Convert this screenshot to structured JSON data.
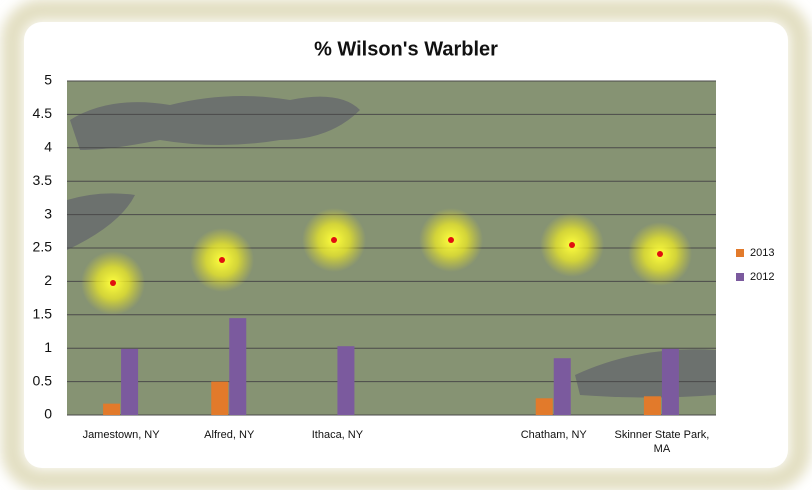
{
  "chart_data": {
    "type": "bar",
    "title": "% Wilson's Warbler",
    "categories": [
      "Jamestown, NY",
      "Alfred, NY",
      "Ithaca, NY",
      null,
      "Chatham, NY",
      "Skinner State Park, MA"
    ],
    "series": [
      {
        "name": "2013",
        "color": "#e27a2b",
        "values": [
          0.17,
          0.5,
          null,
          null,
          0.25,
          0.28
        ]
      },
      {
        "name": "2012",
        "color": "#7b5a9e",
        "values": [
          0.99,
          1.45,
          1.03,
          null,
          0.85,
          0.99
        ]
      }
    ],
    "ylim": [
      0,
      5
    ],
    "yticks": [
      0,
      0.5,
      1,
      1.5,
      2,
      2.5,
      3,
      3.5,
      4,
      4.5,
      5
    ],
    "grid": true,
    "legend": "right"
  }
}
